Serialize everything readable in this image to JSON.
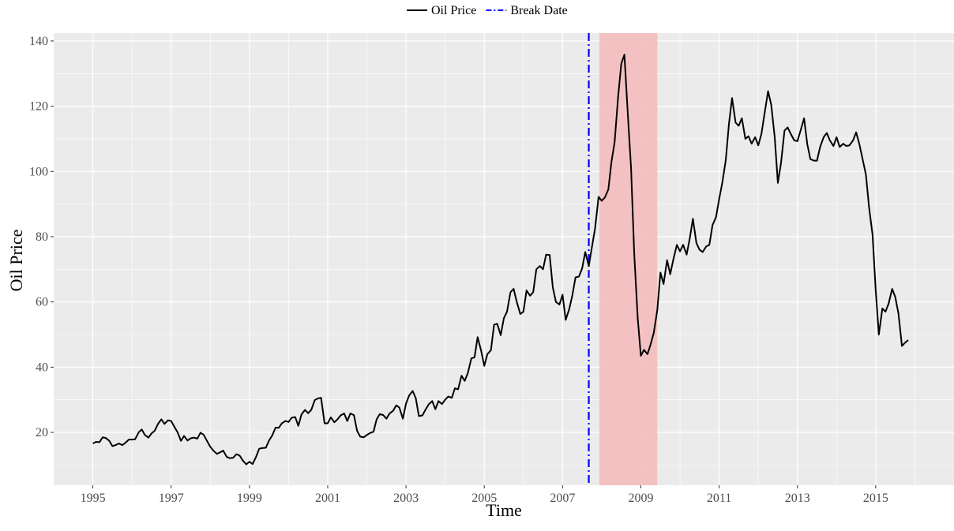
{
  "chart_data": {
    "type": "line",
    "x_label": "Time",
    "y_label": "Oil Price",
    "xlim": [
      1994,
      2017
    ],
    "ylim": [
      3.8,
      142.4
    ],
    "xticks": [
      1995,
      1997,
      1999,
      2001,
      2003,
      2005,
      2007,
      2009,
      2011,
      2013,
      2015
    ],
    "yticks": [
      20,
      40,
      60,
      80,
      100,
      120,
      140
    ],
    "grid": true,
    "legend_position": "top",
    "shaded_region": {
      "xmin": 2007.94,
      "xmax": 2009.42,
      "color": "#f4bcbc"
    },
    "break_line": {
      "name": "Break Date",
      "x": 2007.67,
      "color": "#0000ff"
    },
    "x": [
      1995,
      1995.08,
      1995.17,
      1995.25,
      1995.33,
      1995.42,
      1995.5,
      1995.58,
      1995.67,
      1995.75,
      1995.83,
      1995.92,
      1996,
      1996.08,
      1996.17,
      1996.25,
      1996.33,
      1996.42,
      1996.5,
      1996.58,
      1996.67,
      1996.75,
      1996.83,
      1996.92,
      1997,
      1997.08,
      1997.17,
      1997.25,
      1997.33,
      1997.42,
      1997.5,
      1997.58,
      1997.67,
      1997.75,
      1997.83,
      1997.92,
      1998,
      1998.08,
      1998.17,
      1998.25,
      1998.33,
      1998.42,
      1998.5,
      1998.58,
      1998.67,
      1998.75,
      1998.83,
      1998.92,
      1999,
      1999.08,
      1999.17,
      1999.25,
      1999.33,
      1999.42,
      1999.5,
      1999.58,
      1999.67,
      1999.75,
      1999.83,
      1999.92,
      2000,
      2000.08,
      2000.17,
      2000.25,
      2000.33,
      2000.42,
      2000.5,
      2000.58,
      2000.67,
      2000.75,
      2000.83,
      2000.92,
      2001,
      2001.08,
      2001.17,
      2001.25,
      2001.33,
      2001.42,
      2001.5,
      2001.58,
      2001.67,
      2001.75,
      2001.83,
      2001.92,
      2002,
      2002.08,
      2002.17,
      2002.25,
      2002.33,
      2002.42,
      2002.5,
      2002.58,
      2002.67,
      2002.75,
      2002.83,
      2002.92,
      2003,
      2003.08,
      2003.17,
      2003.25,
      2003.33,
      2003.42,
      2003.5,
      2003.58,
      2003.67,
      2003.75,
      2003.83,
      2003.92,
      2004,
      2004.08,
      2004.17,
      2004.25,
      2004.33,
      2004.42,
      2004.5,
      2004.58,
      2004.67,
      2004.75,
      2004.83,
      2004.92,
      2005,
      2005.08,
      2005.17,
      2005.25,
      2005.33,
      2005.42,
      2005.5,
      2005.58,
      2005.67,
      2005.75,
      2005.83,
      2005.92,
      2006,
      2006.08,
      2006.17,
      2006.25,
      2006.33,
      2006.42,
      2006.5,
      2006.58,
      2006.67,
      2006.75,
      2006.83,
      2006.92,
      2007,
      2007.08,
      2007.17,
      2007.25,
      2007.33,
      2007.42,
      2007.5,
      2007.58,
      2007.67,
      2007.75,
      2007.83,
      2007.92,
      2008,
      2008.08,
      2008.17,
      2008.25,
      2008.33,
      2008.42,
      2008.5,
      2008.58,
      2008.67,
      2008.75,
      2008.83,
      2008.92,
      2009,
      2009.08,
      2009.17,
      2009.25,
      2009.33,
      2009.42,
      2009.5,
      2009.58,
      2009.67,
      2009.75,
      2009.83,
      2009.92,
      2010,
      2010.08,
      2010.17,
      2010.25,
      2010.33,
      2010.42,
      2010.5,
      2010.58,
      2010.67,
      2010.75,
      2010.83,
      2010.92,
      2011,
      2011.08,
      2011.17,
      2011.25,
      2011.33,
      2011.42,
      2011.5,
      2011.58,
      2011.67,
      2011.75,
      2011.83,
      2011.92,
      2012,
      2012.08,
      2012.17,
      2012.25,
      2012.33,
      2012.42,
      2012.5,
      2012.58,
      2012.67,
      2012.75,
      2012.83,
      2012.92,
      2013,
      2013.08,
      2013.17,
      2013.25,
      2013.33,
      2013.42,
      2013.5,
      2013.58,
      2013.67,
      2013.75,
      2013.83,
      2013.92,
      2014,
      2014.08,
      2014.17,
      2014.25,
      2014.33,
      2014.42,
      2014.5,
      2014.58,
      2014.67,
      2014.75,
      2014.83,
      2014.92,
      2015,
      2015.08,
      2015.17,
      2015.25,
      2015.33,
      2015.42,
      2015.5,
      2015.58,
      2015.67,
      2015.75,
      2015.83
    ],
    "series": [
      {
        "name": "Oil Price",
        "color": "#000000",
        "values": [
          16.6,
          17.1,
          17.0,
          18.5,
          18.3,
          17.4,
          15.8,
          16.1,
          16.6,
          16.1,
          16.8,
          17.8,
          17.8,
          17.9,
          20.0,
          20.9,
          19.2,
          18.4,
          19.7,
          20.5,
          22.7,
          24.0,
          22.6,
          23.7,
          23.5,
          21.8,
          19.9,
          17.4,
          18.9,
          17.5,
          18.2,
          18.4,
          18.1,
          19.9,
          19.3,
          17.3,
          15.6,
          14.4,
          13.4,
          13.9,
          14.4,
          12.5,
          12.1,
          12.2,
          13.3,
          12.9,
          11.4,
          10.2,
          11.0,
          10.3,
          12.5,
          15.0,
          15.2,
          15.3,
          17.5,
          19.0,
          21.5,
          21.4,
          22.8,
          23.5,
          23.2,
          24.5,
          24.7,
          22.0,
          25.5,
          26.9,
          25.9,
          26.9,
          29.9,
          30.4,
          30.6,
          22.8,
          22.8,
          24.6,
          23.1,
          24.0,
          25.2,
          25.8,
          23.5,
          25.8,
          25.3,
          20.5,
          18.7,
          18.5,
          19.2,
          19.8,
          20.2,
          24.0,
          25.6,
          25.3,
          24.2,
          25.8,
          26.6,
          28.3,
          27.6,
          24.2,
          28.8,
          31.3,
          32.7,
          30.5,
          25.0,
          25.2,
          27.0,
          28.6,
          29.6,
          27.1,
          29.6,
          28.7,
          30.0,
          31.0,
          30.6,
          33.5,
          33.2,
          37.4,
          35.8,
          38.2,
          42.7,
          43.0,
          49.2,
          45.0,
          40.4,
          44.0,
          45.2,
          53.0,
          53.3,
          49.8,
          55.0,
          57.0,
          63.0,
          64.0,
          60.0,
          56.3,
          57.0,
          63.5,
          61.9,
          63.0,
          70.0,
          71.0,
          70.0,
          74.5,
          74.4,
          64.5,
          60.0,
          59.2,
          62.2,
          54.5,
          57.8,
          62.0,
          67.5,
          67.8,
          70.3,
          75.3,
          71.0,
          76.8,
          82.5,
          92.2,
          91.0,
          92.0,
          94.5,
          103.0,
          109.0,
          123.0,
          133.0,
          135.8,
          117.0,
          101.0,
          75.0,
          55.0,
          43.5,
          45.3,
          44.0,
          47.0,
          50.5,
          57.5,
          69.0,
          65.5,
          72.8,
          68.5,
          73.0,
          77.5,
          75.5,
          77.5,
          74.5,
          79.5,
          85.5,
          78.0,
          76.0,
          75.3,
          77.0,
          77.5,
          83.5,
          86.0,
          91.5,
          96.5,
          103.5,
          114.5,
          122.5,
          115.0,
          114.0,
          116.3,
          110.0,
          110.8,
          108.5,
          110.5,
          108.0,
          111.5,
          118.5,
          124.6,
          120.5,
          110.5,
          96.5,
          102.5,
          112.5,
          113.5,
          111.5,
          109.5,
          109.3,
          112.5,
          116.3,
          108.5,
          103.8,
          103.3,
          103.3,
          107.5,
          110.5,
          111.8,
          109.5,
          107.8,
          110.5,
          107.5,
          108.5,
          107.8,
          108.0,
          109.5,
          112.0,
          108.5,
          103.5,
          99.0,
          89.0,
          80.5,
          63.5,
          50.0,
          58.0,
          57.0,
          59.5,
          64.0,
          61.5,
          56.5,
          46.5,
          47.5,
          48.3
        ]
      }
    ]
  }
}
